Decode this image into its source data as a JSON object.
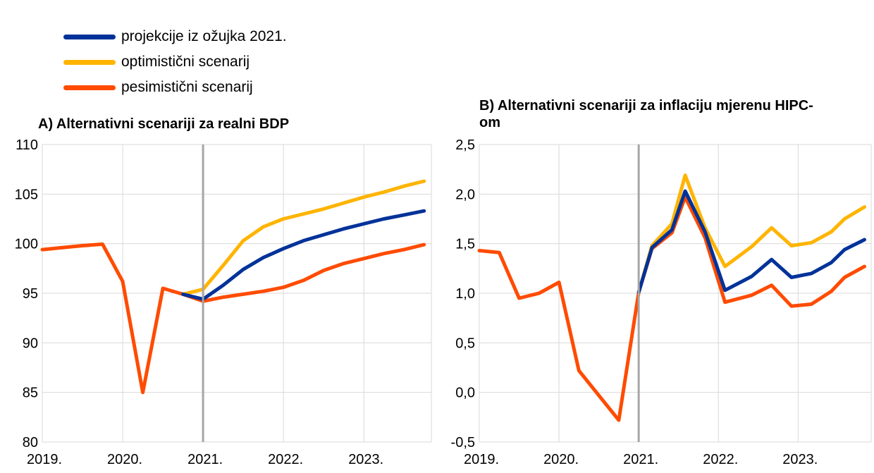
{
  "legend": [
    {
      "label": "projekcije iz ožujka 2021.",
      "color": "#003299"
    },
    {
      "label": "optimistični scenarij",
      "color": "#FFB400"
    },
    {
      "label": "pesimistični scenarij",
      "color": "#FF4B00"
    }
  ],
  "chart_data": [
    {
      "type": "line",
      "title": "A) Alternativni scenariji za realni BDP",
      "ylim": [
        80,
        110
      ],
      "yticks": [
        "80",
        "85",
        "90",
        "95",
        "100",
        "105",
        "110"
      ],
      "xlim": [
        2019.0,
        2023.84
      ],
      "xticks": [
        {
          "label": "2019.",
          "x": 2019.0
        },
        {
          "label": "2020.",
          "x": 2020.0
        },
        {
          "label": "2021.",
          "x": 2021.0
        },
        {
          "label": "2022.",
          "x": 2022.0
        },
        {
          "label": "2023.",
          "x": 2023.0
        }
      ],
      "vline": 2021.0,
      "series": [
        {
          "name": "projekcije iz ožujka 2021.",
          "x": [
            2020.75,
            2021.0,
            2021.25,
            2021.5,
            2021.75,
            2022.0,
            2022.25,
            2022.5,
            2022.75,
            2023.0,
            2023.25,
            2023.5,
            2023.75
          ],
          "values": [
            94.9,
            94.4,
            95.8,
            97.4,
            98.6,
            99.5,
            100.3,
            100.9,
            101.5,
            102.0,
            102.5,
            102.9,
            103.3
          ]
        },
        {
          "name": "optimistični scenarij",
          "x": [
            2020.75,
            2021.0,
            2021.25,
            2021.5,
            2021.75,
            2022.0,
            2022.25,
            2022.5,
            2022.75,
            2023.0,
            2023.25,
            2023.5,
            2023.75
          ],
          "values": [
            94.9,
            95.4,
            97.8,
            100.3,
            101.7,
            102.5,
            103.0,
            103.5,
            104.1,
            104.7,
            105.2,
            105.8,
            106.3
          ]
        },
        {
          "name": "pesimistični scenarij",
          "x": [
            2019.0,
            2019.25,
            2019.5,
            2019.75,
            2020.0,
            2020.25,
            2020.5,
            2020.75,
            2021.0,
            2021.25,
            2021.5,
            2021.75,
            2022.0,
            2022.25,
            2022.5,
            2022.75,
            2023.0,
            2023.25,
            2023.5,
            2023.75
          ],
          "values": [
            99.4,
            99.6,
            99.8,
            99.95,
            96.2,
            85.0,
            95.5,
            94.9,
            94.2,
            94.6,
            94.9,
            95.2,
            95.6,
            96.3,
            97.3,
            98.0,
            98.5,
            99.0,
            99.4,
            99.9
          ]
        }
      ]
    },
    {
      "type": "line",
      "title": "B) Alternativni scenariji za inflaciju mjerenu HIPC-om",
      "ylim": [
        -0.5,
        2.5
      ],
      "yticks": [
        "-0,5",
        "0,0",
        "0,5",
        "1,0",
        "1,5",
        "2,0",
        "2,5"
      ],
      "xlim": [
        2019.0,
        2023.917
      ],
      "xticks": [
        {
          "label": "2019.",
          "x": 2019.0
        },
        {
          "label": "2020.",
          "x": 2020.0
        },
        {
          "label": "2021.",
          "x": 2021.0
        },
        {
          "label": "2022.",
          "x": 2022.0
        },
        {
          "label": "2023.",
          "x": 2023.0
        }
      ],
      "vline": 2021.0,
      "series": [
        {
          "name": "projekcije iz ožujka 2021.",
          "x": [
            2021.0,
            2021.167,
            2021.417,
            2021.583,
            2021.833,
            2022.083,
            2022.417,
            2022.667,
            2022.917,
            2023.167,
            2023.417,
            2023.583,
            2023.833
          ],
          "values": [
            1.01,
            1.46,
            1.64,
            2.03,
            1.62,
            1.03,
            1.17,
            1.34,
            1.16,
            1.2,
            1.31,
            1.44,
            1.54
          ]
        },
        {
          "name": "optimistični scenarij",
          "x": [
            2021.0,
            2021.167,
            2021.417,
            2021.583,
            2021.833,
            2022.083,
            2022.417,
            2022.667,
            2022.917,
            2023.167,
            2023.417,
            2023.583,
            2023.833
          ],
          "values": [
            1.01,
            1.48,
            1.7,
            2.19,
            1.66,
            1.27,
            1.47,
            1.66,
            1.48,
            1.51,
            1.62,
            1.75,
            1.87
          ]
        },
        {
          "name": "pesimistični scenarij",
          "x": [
            2019.0,
            2019.25,
            2019.5,
            2019.75,
            2020.0,
            2020.25,
            2020.5,
            2020.75,
            2021.0,
            2021.167,
            2021.417,
            2021.583,
            2021.833,
            2022.083,
            2022.417,
            2022.667,
            2022.917,
            2023.167,
            2023.417,
            2023.583,
            2023.833
          ],
          "values": [
            1.43,
            1.41,
            0.95,
            1.0,
            1.11,
            0.22,
            -0.03,
            -0.28,
            1.01,
            1.45,
            1.61,
            1.97,
            1.56,
            0.91,
            0.98,
            1.08,
            0.87,
            0.89,
            1.02,
            1.16,
            1.27
          ]
        }
      ]
    }
  ]
}
